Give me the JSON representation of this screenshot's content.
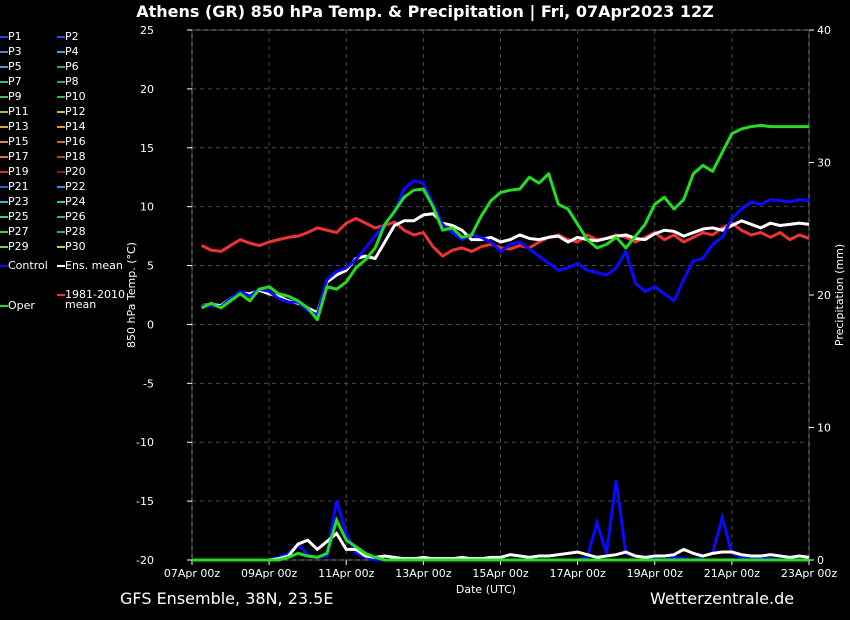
{
  "title": "Athens  (GR)  850 hPa Temp. & Precipitation | Fri, 07Apr2023 12Z",
  "footer_left": "GFS Ensemble, 38N, 23.5E",
  "footer_right": "Wetterzentrale.de",
  "colors": {
    "background": "#000000",
    "grid": "#4a4a4a",
    "control": "#0a0aff",
    "ens_mean": "#ffffff",
    "oper": "#22dd22",
    "climo": "#ee3333"
  },
  "legend": [
    {
      "label": "P1",
      "color": "#1f3fd8"
    },
    {
      "label": "P2",
      "color": "#2a4fe0"
    },
    {
      "label": "P3",
      "color": "#5a86c8"
    },
    {
      "label": "P4",
      "color": "#4aa0e0"
    },
    {
      "label": "P5",
      "color": "#38a8c8"
    },
    {
      "label": "P6",
      "color": "#20b09a"
    },
    {
      "label": "P7",
      "color": "#30b8a8"
    },
    {
      "label": "P8",
      "color": "#22b070"
    },
    {
      "label": "P9",
      "color": "#40c060"
    },
    {
      "label": "P10",
      "color": "#30c030"
    },
    {
      "label": "P11",
      "color": "#a0c040"
    },
    {
      "label": "P12",
      "color": "#c8c040"
    },
    {
      "label": "P13",
      "color": "#d0b030"
    },
    {
      "label": "P14",
      "color": "#e0a030"
    },
    {
      "label": "P15",
      "color": "#d89040"
    },
    {
      "label": "P16",
      "color": "#c87030"
    },
    {
      "label": "P17",
      "color": "#e07040"
    },
    {
      "label": "P18",
      "color": "#c84020"
    },
    {
      "label": "P19",
      "color": "#d83030"
    },
    {
      "label": "P20",
      "color": "#a01010"
    },
    {
      "label": "P21",
      "color": "#3060d0"
    },
    {
      "label": "P22",
      "color": "#3a90e8"
    },
    {
      "label": "P23",
      "color": "#40b0d8"
    },
    {
      "label": "P24",
      "color": "#30c0b8"
    },
    {
      "label": "P25",
      "color": "#30d090"
    },
    {
      "label": "P26",
      "color": "#20c060"
    },
    {
      "label": "P27",
      "color": "#40d050"
    },
    {
      "label": "P28",
      "color": "#30b040"
    },
    {
      "label": "P29",
      "color": "#80d030"
    },
    {
      "label": "P30",
      "color": "#d0d020"
    },
    {
      "label": "Control",
      "color": "#0a0aff"
    },
    {
      "label": "Ens. mean",
      "color": "#ffffff"
    },
    {
      "label": "1981-2010",
      "label2": "mean",
      "color": "#ee3333"
    },
    {
      "label": "Oper",
      "color": "#22dd22"
    }
  ],
  "chart_data": {
    "type": "line",
    "title": "Athens  (GR)  850 hPa Temp. & Precipitation | Fri, 07Apr2023 12Z",
    "xlabel": "Date (UTC)",
    "ylabel": "850 hPa Temp. (°C)",
    "y2label": "Precipitation (mm)",
    "ylim": [
      -20,
      25
    ],
    "y2lim": [
      0,
      40
    ],
    "yticks": [
      25,
      20,
      15,
      10,
      5,
      0,
      -5,
      -10,
      -15,
      -20
    ],
    "y2ticks": [
      40,
      30,
      20,
      10,
      0
    ],
    "xlim_hours": [
      0,
      384
    ],
    "x_tick_labels": [
      "07Apr 00z",
      "09Apr 00z",
      "11Apr 00z",
      "13Apr 00z",
      "15Apr 00z",
      "17Apr 00z",
      "19Apr 00z",
      "21Apr 00z",
      "23Apr 00z"
    ],
    "x_tick_hours": [
      0,
      48,
      96,
      144,
      192,
      240,
      288,
      336,
      384
    ],
    "grid": true,
    "x_hours": [
      6,
      12,
      18,
      24,
      30,
      36,
      42,
      48,
      54,
      60,
      66,
      72,
      78,
      84,
      90,
      96,
      102,
      108,
      114,
      120,
      126,
      132,
      138,
      144,
      150,
      156,
      162,
      168,
      174,
      180,
      186,
      192,
      198,
      204,
      210,
      216,
      222,
      228,
      234,
      240,
      246,
      252,
      258,
      264,
      270,
      276,
      282,
      288,
      294,
      300,
      306,
      312,
      318,
      324,
      330,
      336,
      342,
      348,
      354,
      360,
      366,
      372,
      378,
      384
    ],
    "series": [
      {
        "name": "Control",
        "values": [
          1.6,
          1.6,
          1.5,
          2.2,
          2.8,
          2.4,
          3.0,
          2.8,
          2.2,
          1.9,
          1.9,
          1.2,
          0.8,
          3.8,
          4.5,
          4.8,
          5.5,
          6.5,
          7.5,
          8.5,
          9.5,
          11.5,
          12.2,
          12.0,
          10.2,
          8.5,
          7.8,
          7.2,
          7.6,
          7.4,
          7.0,
          6.2,
          6.8,
          7.0,
          6.4,
          5.8,
          5.2,
          4.6,
          4.8,
          5.2,
          4.6,
          4.4,
          4.2,
          4.8,
          6.2,
          3.5,
          2.8,
          3.2,
          2.6,
          2.0,
          3.8,
          5.4,
          5.6,
          6.8,
          7.4,
          9.0,
          9.8,
          10.4,
          10.2,
          10.6,
          10.5,
          10.4,
          10.6,
          10.5
        ]
      },
      {
        "name": "Ens. mean",
        "values": [
          1.6,
          1.7,
          1.6,
          2.2,
          2.7,
          2.6,
          2.9,
          2.6,
          2.4,
          2.0,
          1.8,
          1.4,
          1.0,
          3.6,
          4.2,
          4.6,
          5.6,
          5.8,
          5.6,
          7.0,
          8.4,
          8.8,
          8.8,
          9.3,
          9.4,
          8.6,
          8.4,
          8.0,
          7.2,
          7.2,
          7.4,
          7.0,
          7.2,
          7.6,
          7.3,
          7.2,
          7.4,
          7.5,
          7.0,
          7.4,
          7.2,
          7.1,
          7.3,
          7.5,
          7.6,
          7.3,
          7.2,
          7.7,
          8.0,
          7.9,
          7.5,
          7.8,
          8.1,
          8.2,
          8.0,
          8.4,
          8.8,
          8.5,
          8.2,
          8.6,
          8.4,
          8.5,
          8.6,
          8.5
        ]
      },
      {
        "name": "Oper",
        "values": [
          1.4,
          1.8,
          1.4,
          2.0,
          2.6,
          2.0,
          3.0,
          3.2,
          2.6,
          2.4,
          2.0,
          1.4,
          0.4,
          3.2,
          3.0,
          3.6,
          4.8,
          5.5,
          6.5,
          8.5,
          9.6,
          10.8,
          11.4,
          11.5,
          10.0,
          8.0,
          8.2,
          7.4,
          7.6,
          9.2,
          10.5,
          11.2,
          11.4,
          11.5,
          12.5,
          12.0,
          12.8,
          10.2,
          9.8,
          8.5,
          7.2,
          6.5,
          6.8,
          7.4,
          6.5,
          7.5,
          8.5,
          10.2,
          10.8,
          9.8,
          10.6,
          12.8,
          13.5,
          13.0,
          14.6,
          16.2,
          16.6,
          16.8,
          16.9,
          16.8,
          16.8,
          16.8,
          16.8,
          16.8
        ]
      },
      {
        "name": "1981-2010 mean",
        "values": [
          6.7,
          6.3,
          6.2,
          6.7,
          7.2,
          6.9,
          6.7,
          7.0,
          7.2,
          7.4,
          7.5,
          7.8,
          8.2,
          8.0,
          7.8,
          8.6,
          9.0,
          8.6,
          8.2,
          8.4,
          8.7,
          8.0,
          7.6,
          7.8,
          6.6,
          5.8,
          6.3,
          6.5,
          6.2,
          6.6,
          6.8,
          6.5,
          6.4,
          6.7,
          6.5,
          7.0,
          7.4,
          7.6,
          7.2,
          7.0,
          7.6,
          7.2,
          7.3,
          7.6,
          7.4,
          7.0,
          7.4,
          7.8,
          7.2,
          7.6,
          7.0,
          7.4,
          7.8,
          7.6,
          8.2,
          8.6,
          8.0,
          7.6,
          7.8,
          7.4,
          7.8,
          7.2,
          7.6,
          7.3
        ]
      }
    ],
    "precipitation_series": [
      {
        "name": "Control",
        "values": [
          0,
          0,
          0,
          0,
          0,
          0,
          0,
          0,
          0.2,
          0.5,
          1.2,
          0.4,
          0.2,
          0.3,
          4.5,
          2.0,
          0.5,
          0.2,
          0,
          0,
          0,
          0,
          0,
          0,
          0,
          0,
          0,
          0,
          0,
          0,
          0,
          0,
          0,
          0,
          0,
          0,
          0,
          0,
          0,
          0,
          0.2,
          2.8,
          0.5,
          6.0,
          0.5,
          0.3,
          0.2,
          0.1,
          0,
          0.2,
          0.1,
          0,
          0.3,
          0.5,
          3.2,
          0.5,
          0.2,
          0.1,
          0.2,
          0.1,
          0,
          0.1,
          0,
          0
        ]
      },
      {
        "name": "Ens. mean",
        "values": [
          0,
          0,
          0,
          0,
          0,
          0,
          0,
          0,
          0.1,
          0.3,
          1.2,
          1.5,
          0.8,
          1.4,
          2.0,
          0.8,
          0.8,
          0.3,
          0.2,
          0.3,
          0.2,
          0.1,
          0.1,
          0.2,
          0.1,
          0.1,
          0.1,
          0.2,
          0.1,
          0.1,
          0.2,
          0.2,
          0.4,
          0.3,
          0.2,
          0.3,
          0.3,
          0.4,
          0.5,
          0.6,
          0.4,
          0.2,
          0.3,
          0.4,
          0.6,
          0.3,
          0.2,
          0.3,
          0.3,
          0.4,
          0.8,
          0.5,
          0.3,
          0.5,
          0.6,
          0.6,
          0.4,
          0.3,
          0.3,
          0.4,
          0.3,
          0.2,
          0.3,
          0.2
        ]
      },
      {
        "name": "Oper",
        "values": [
          0,
          0,
          0,
          0,
          0,
          0,
          0,
          0,
          0,
          0.2,
          0.5,
          0.3,
          0.2,
          0.5,
          3.0,
          1.5,
          1.0,
          0.5,
          0.2,
          0,
          0,
          0,
          0,
          0,
          0,
          0,
          0,
          0,
          0,
          0,
          0,
          0,
          0,
          0,
          0,
          0,
          0,
          0,
          0,
          0,
          0,
          0,
          0,
          0,
          0,
          0,
          0,
          0,
          0,
          0,
          0,
          0,
          0,
          0,
          0,
          0,
          0,
          0,
          0,
          0,
          0,
          0,
          0,
          0
        ]
      }
    ]
  }
}
